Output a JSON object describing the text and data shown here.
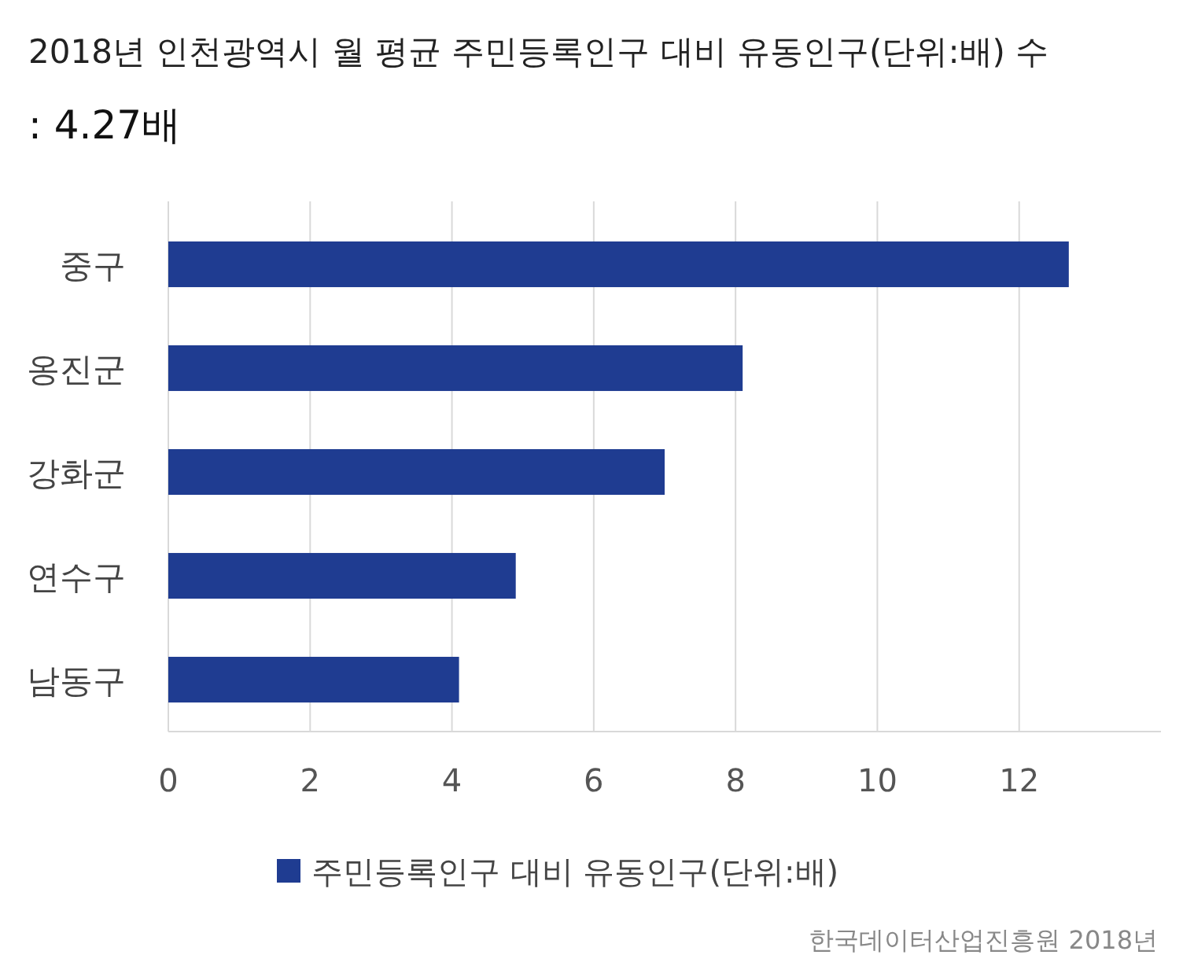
{
  "chart_data": {
    "type": "bar",
    "orientation": "horizontal",
    "title": "2018년 인천광역시 월 평균 주민등록인구 대비 유동인구(단위:배) 수",
    "subtitle": ": 4.27배",
    "categories": [
      "중구",
      "옹진군",
      "강화군",
      "연수구",
      "남동구"
    ],
    "series": [
      {
        "name": "주민등록인구 대비 유동인구(단위:배)",
        "color": "#1f3c91",
        "values": [
          12.7,
          8.1,
          7.0,
          4.9,
          4.1
        ]
      }
    ],
    "xlim": [
      0,
      14
    ],
    "xticks": [
      0,
      2,
      4,
      6,
      8,
      10,
      12
    ],
    "grid": "x",
    "legend": "bottom",
    "annotations": [
      "한국데이터산업진흥원 2018년"
    ]
  }
}
